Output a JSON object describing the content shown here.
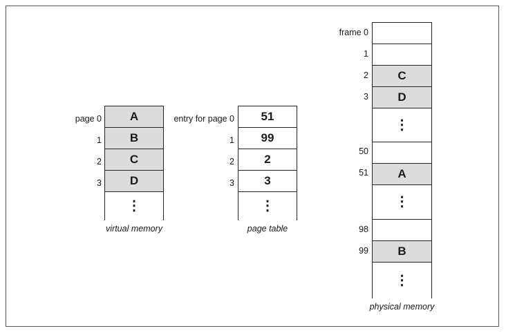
{
  "virtual_memory": {
    "caption": "virtual memory",
    "labels": [
      "page 0",
      "1",
      "2",
      "3"
    ],
    "cells": [
      "A",
      "B",
      "C",
      "D"
    ],
    "continuation": "⋮"
  },
  "page_table": {
    "caption": "page table",
    "labels": [
      "entry for page 0",
      "1",
      "2",
      "3"
    ],
    "cells": [
      "51",
      "99",
      "2",
      "3"
    ],
    "continuation": "⋮"
  },
  "physical_memory": {
    "caption": "physical memory",
    "labels": [
      "frame 0",
      "1",
      "2",
      "3",
      "50",
      "51",
      "98",
      "99"
    ],
    "cells": [
      "",
      "",
      "C",
      "D",
      "⋮",
      "",
      "A",
      "⋮",
      "",
      "B",
      "⋮"
    ]
  }
}
